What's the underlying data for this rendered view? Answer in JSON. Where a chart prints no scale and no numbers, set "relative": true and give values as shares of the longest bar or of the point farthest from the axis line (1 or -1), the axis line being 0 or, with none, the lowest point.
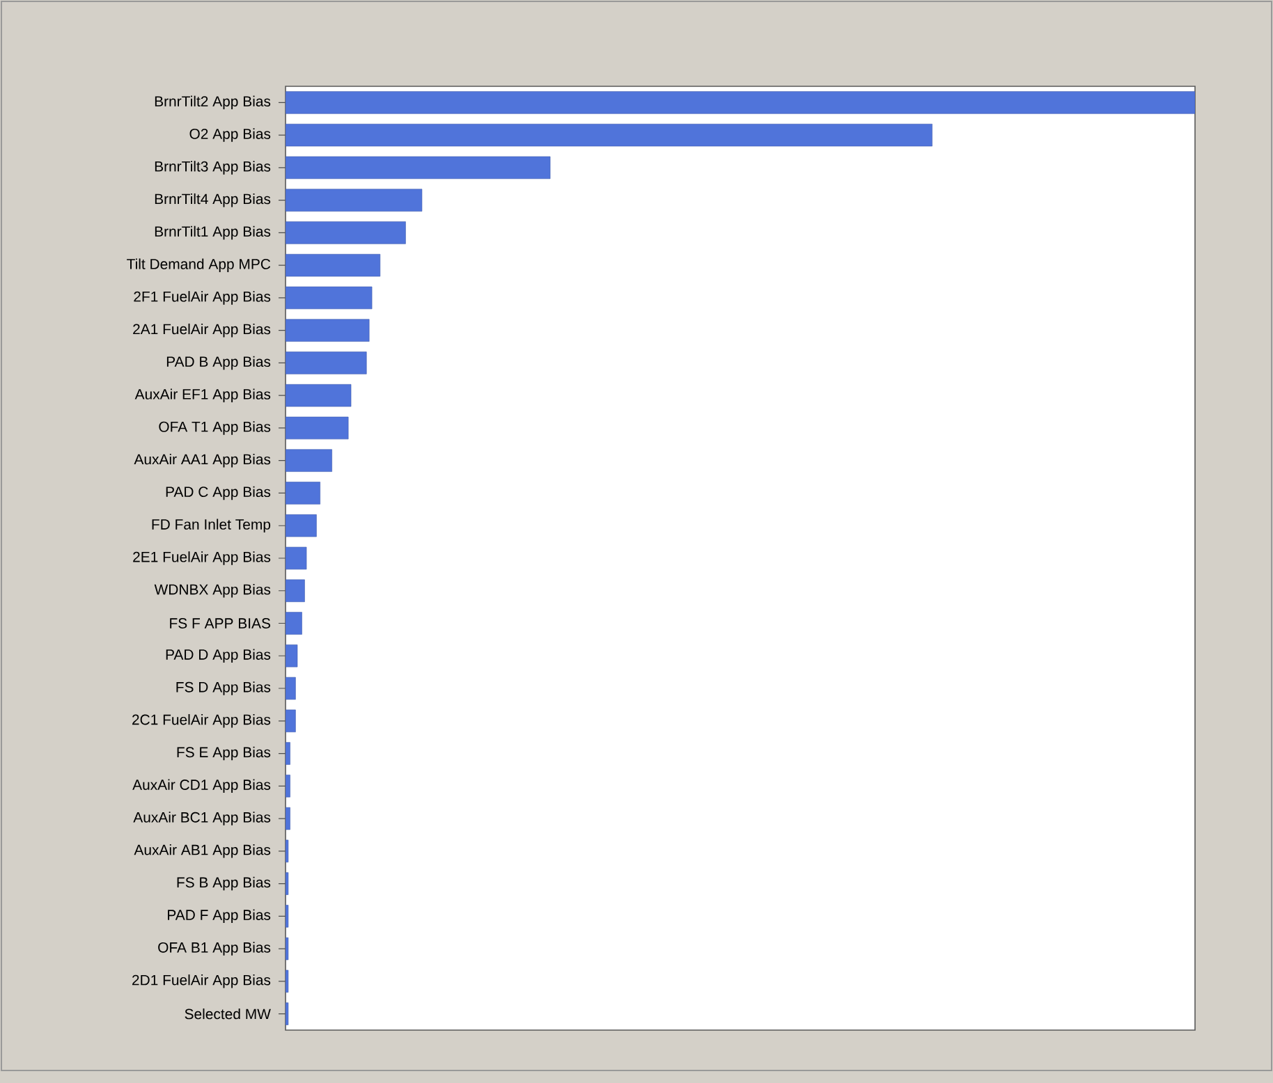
{
  "chart_data": {
    "type": "bar",
    "orientation": "horizontal",
    "relative": true,
    "color": "#5074da",
    "categories": [
      "BrnrTilt2 App Bias",
      "O2 App Bias",
      "BrnrTilt3 App Bias",
      "BrnrTilt4 App Bias",
      "BrnrTilt1 App Bias",
      "Tilt Demand App MPC",
      "2F1 FuelAir App Bias",
      "2A1 FuelAir App Bias",
      "PAD B App Bias",
      "AuxAir EF1 App Bias",
      "OFA T1 App Bias",
      "AuxAir AA1 App Bias",
      "PAD C App Bias",
      "FD Fan Inlet Temp",
      "2E1 FuelAir App Bias",
      "WDNBX App Bias",
      "FS F APP BIAS",
      "PAD D App Bias",
      "FS D App Bias",
      "2C1 FuelAir App Bias",
      "FS E App Bias",
      "AuxAir CD1 App Bias",
      "AuxAir BC1 App Bias",
      "AuxAir AB1 App Bias",
      "FS B App Bias",
      "PAD F App Bias",
      "OFA B1 App Bias",
      "2D1 FuelAir App Bias",
      "Selected MW"
    ],
    "values": [
      1,
      0.711,
      0.291,
      0.15,
      0.132,
      0.104,
      0.095,
      0.092,
      0.089,
      0.072,
      0.069,
      0.051,
      0.038,
      0.034,
      0.023,
      0.021,
      0.018,
      0.013,
      0.011,
      0.011,
      0.005,
      0.005,
      0.005,
      0.003,
      0.003,
      0.003,
      0.003,
      0.003,
      0.003
    ]
  }
}
